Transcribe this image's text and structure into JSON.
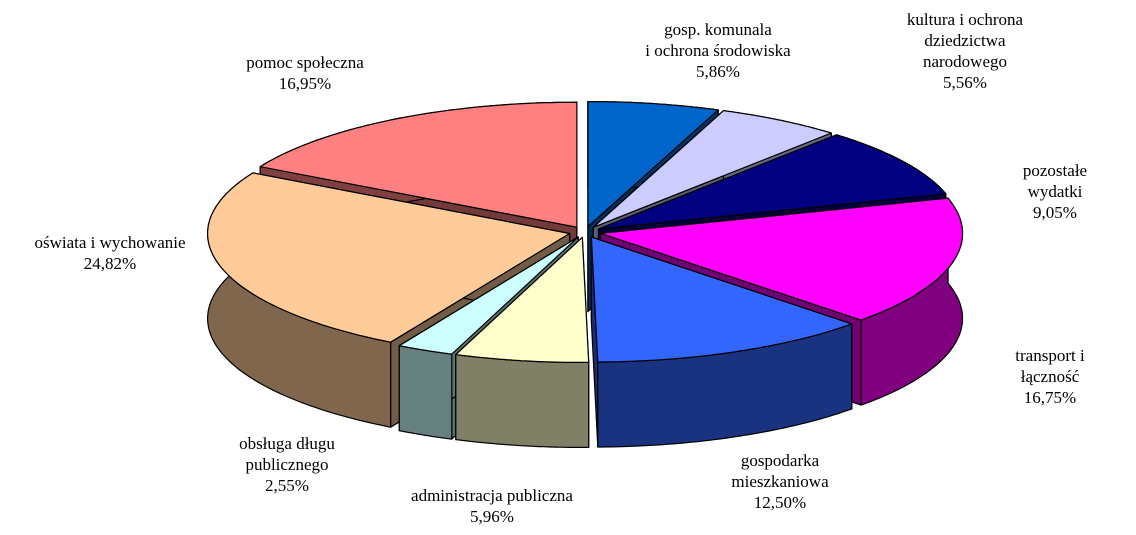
{
  "chart_data": {
    "type": "pie3d",
    "categories": [
      "gosp. komunala\ni ochrona środowiska",
      "kultura  i ochrona\ndziedzictwa\nnarodowego",
      "pozostałe wydatki",
      "transport i łączność",
      "gospodarka\nmieszkaniowa",
      "administracja publiczna",
      "obsługa długu\npublicznego",
      "oświata i wychowanie",
      "pomoc społeczna"
    ],
    "values": [
      5.86,
      5.56,
      9.05,
      16.75,
      12.5,
      5.96,
      2.55,
      24.82,
      16.95
    ],
    "value_labels": [
      "5,86%",
      "5,56%",
      "9,05%",
      "16,75%",
      "12,50%",
      "5,96%",
      "2,55%",
      "24,82%",
      "16,95%"
    ],
    "colors": [
      "#0066CC",
      "#CCCCFF",
      "#000080",
      "#FF00FF",
      "#3366FF",
      "#FFFFCC",
      "#CCFFFF",
      "#FFCC99",
      "#FF8080"
    ]
  }
}
